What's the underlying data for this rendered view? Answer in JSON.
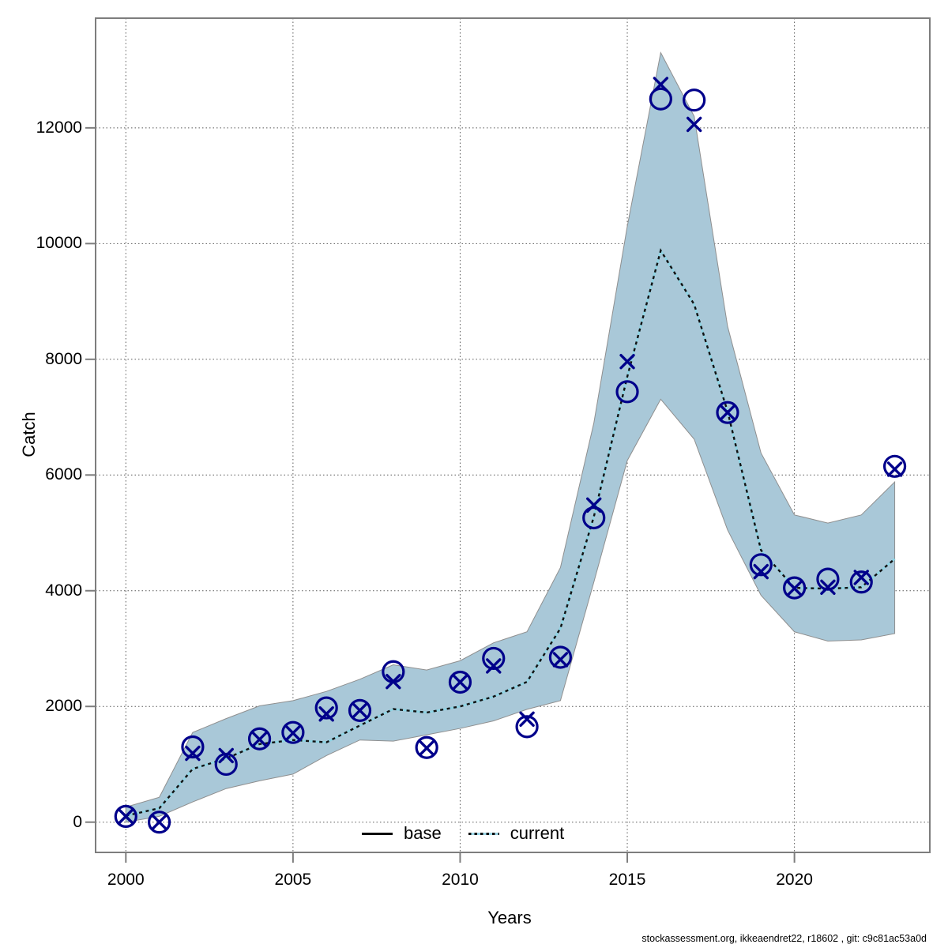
{
  "footer": "stockassessment.org, ikkeaendret22, r18602 , git: c9c81ac53a0d",
  "legend": {
    "position": "bottom-center-inside",
    "items": [
      {
        "label": "base",
        "style": "solid-black-line"
      },
      {
        "label": "current",
        "style": "dotted-black-cyan-line"
      }
    ]
  },
  "chart_data": {
    "type": "line",
    "title": "",
    "xlabel": "Years",
    "ylabel": "Catch",
    "grid": "dotted",
    "x_ticks": [
      2000,
      2005,
      2010,
      2015,
      2020
    ],
    "y_ticks": [
      0,
      2000,
      4000,
      6000,
      8000,
      10000,
      12000
    ],
    "xlim": [
      1999.095,
      2024.05
    ],
    "ylim": [
      -523,
      13896
    ],
    "years": [
      2000,
      2001,
      2002,
      2003,
      2004,
      2005,
      2006,
      2007,
      2008,
      2009,
      2010,
      2011,
      2012,
      2013,
      2014,
      2015,
      2016,
      2017,
      2018,
      2019,
      2020,
      2021,
      2022,
      2023
    ],
    "series": [
      {
        "name": "base",
        "marker": "x",
        "values": [
          100,
          0,
          1190,
          1150,
          1430,
          1540,
          1870,
          1930,
          2430,
          1280,
          2420,
          2700,
          1780,
          2810,
          5480,
          7960,
          12750,
          12060,
          7080,
          4330,
          4040,
          4060,
          4230,
          6100
        ]
      },
      {
        "name": "current",
        "marker": "circle",
        "values": [
          100,
          0,
          1300,
          1000,
          1440,
          1550,
          1975,
          1930,
          2600,
          1290,
          2420,
          2830,
          1650,
          2850,
          5260,
          7440,
          12500,
          12480,
          7080,
          4450,
          4050,
          4200,
          4150,
          6150
        ]
      },
      {
        "name": "current_fit",
        "line": "dotted",
        "values": [
          110,
          240,
          920,
          1100,
          1350,
          1420,
          1380,
          1670,
          1955,
          1895,
          2000,
          2170,
          2425,
          3350,
          5280,
          7700,
          9880,
          8950,
          7100,
          4700,
          4050,
          4035,
          4060,
          4550
        ]
      }
    ],
    "band": {
      "name": "current-confidence-band",
      "hi": [
        260,
        430,
        1550,
        1790,
        2010,
        2100,
        2260,
        2470,
        2720,
        2630,
        2790,
        3100,
        3290,
        4400,
        6900,
        10300,
        13300,
        12200,
        8570,
        6380,
        5310,
        5170,
        5310,
        5880
      ],
      "lo": [
        0,
        100,
        350,
        580,
        715,
        830,
        1150,
        1420,
        1400,
        1510,
        1620,
        1750,
        1950,
        2100,
        4150,
        6250,
        7310,
        6620,
        5050,
        3920,
        3290,
        3130,
        3150,
        3260
      ]
    },
    "colors": {
      "band_fill": "#a9c8d8",
      "band_edge": "#8f8f8f",
      "marker": "#00008b",
      "fit_underlay": "#8ed4e4",
      "fit_dash": "#111111",
      "frame": "#7d7d7d",
      "grid": "#5a5a5a"
    }
  }
}
